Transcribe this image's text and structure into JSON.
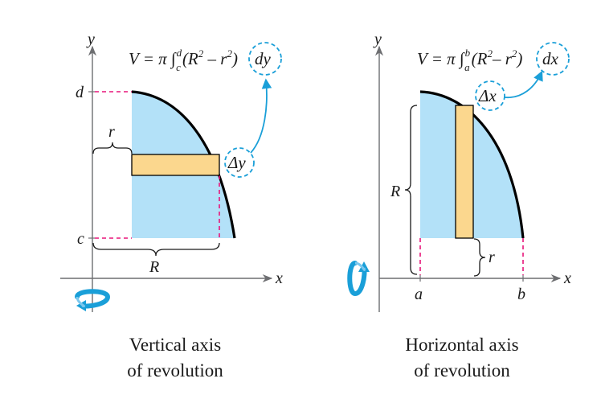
{
  "left_panel": {
    "y_axis_label": "y",
    "x_axis_label": "x",
    "tick_d": "d",
    "tick_c": "c",
    "label_r": "r",
    "label_R": "R",
    "label_delta": "Δy",
    "formula": {
      "lead": "V = π ∫",
      "upper": "d",
      "lower": "c",
      "integrand": "(R",
      "sup1": "2",
      "minus": " – r",
      "sup2": "2",
      "close": ")",
      "differential": "dy"
    },
    "caption_line1": "Vertical axis",
    "caption_line2": "of revolution"
  },
  "right_panel": {
    "y_axis_label": "y",
    "x_axis_label": "x",
    "tick_a": "a",
    "tick_b": "b",
    "label_r": "r",
    "label_R": "R",
    "label_delta": "Δx",
    "formula": {
      "lead": "V = π ∫",
      "upper": "b",
      "lower": "a",
      "integrand": "(R",
      "sup1": "2",
      "minus": "– r",
      "sup2": "2",
      "close": ")",
      "differential": "dx"
    },
    "caption_line1": "Horizontal axis",
    "caption_line2": "of revolution"
  },
  "colors": {
    "region_fill": "#b3e1f8",
    "rectangle_fill": "#fbd78e",
    "dash_color": "#e8157a",
    "accent_blue": "#1a9fd8",
    "axis_gray": "#6d6e71"
  },
  "icons": {
    "rotation_left": "rotation-arrow-icon",
    "rotation_right": "rotation-arrow-icon"
  }
}
